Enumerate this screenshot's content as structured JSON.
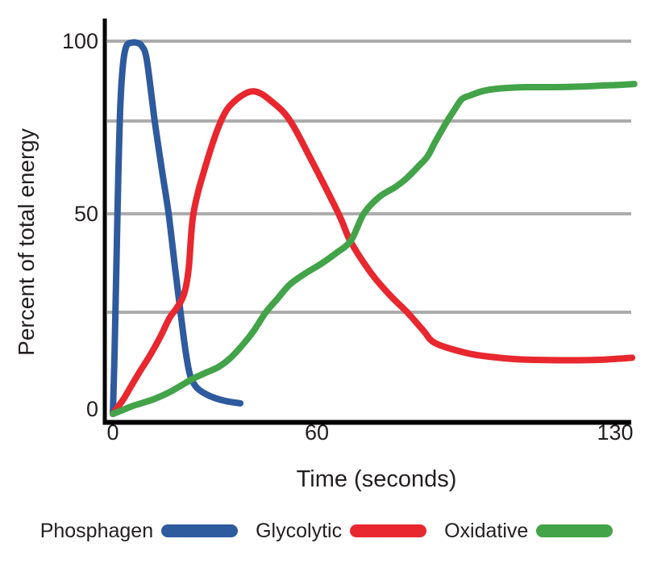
{
  "chart_data": {
    "type": "line",
    "xlabel": "Time (seconds)",
    "ylabel": "Percent of total energy",
    "xlim": [
      0,
      134
    ],
    "ylim": [
      0,
      100
    ],
    "grid": "horizontal",
    "gridlines_y": [
      100,
      75,
      50,
      25
    ],
    "legend_position": "bottom",
    "x_ticks": [
      {
        "label": "0",
        "value": 0
      },
      {
        "label": "60",
        "value": 60
      },
      {
        "label": "130",
        "value": 130
      }
    ],
    "y_ticks": [
      {
        "label": "100",
        "value": 100
      },
      {
        "label": "50",
        "value": 50
      },
      {
        "label": "0",
        "value": 0
      }
    ],
    "series": [
      {
        "name": "Phosphagen",
        "color": "#2E5A9E",
        "points": [
          [
            0,
            0
          ],
          [
            0.5,
            15
          ],
          [
            1,
            35
          ],
          [
            1.6,
            60
          ],
          [
            2.2,
            80
          ],
          [
            3,
            93
          ],
          [
            4,
            98.5
          ],
          [
            5.5,
            99.5
          ],
          [
            7,
            99.5
          ],
          [
            8.5,
            98.5
          ],
          [
            10,
            94
          ],
          [
            12.3,
            75
          ],
          [
            14.4,
            62
          ],
          [
            16.4,
            50
          ],
          [
            18.2,
            37
          ],
          [
            19.9,
            25
          ],
          [
            21.3,
            16
          ],
          [
            22.3,
            11
          ],
          [
            23.2,
            8.4
          ],
          [
            25,
            6.2
          ],
          [
            28.5,
            4.4
          ],
          [
            33,
            3.2
          ],
          [
            37.5,
            2.6
          ]
        ]
      },
      {
        "name": "Glycolytic",
        "color": "#E8272E",
        "points": [
          [
            0,
            0
          ],
          [
            3,
            3.5
          ],
          [
            5.5,
            7
          ],
          [
            8,
            10.5
          ],
          [
            11,
            14.5
          ],
          [
            14,
            19
          ],
          [
            16.6,
            23.5
          ],
          [
            18.7,
            26
          ],
          [
            20.9,
            29.5
          ],
          [
            22.3,
            36
          ],
          [
            23.7,
            50
          ],
          [
            27.3,
            63
          ],
          [
            31.8,
            75
          ],
          [
            35.6,
            81
          ],
          [
            41.5,
            84.3
          ],
          [
            47.4,
            80.5
          ],
          [
            52.2,
            75
          ],
          [
            58.1,
            65
          ],
          [
            65.1,
            50
          ],
          [
            67.9,
            43
          ],
          [
            72.7,
            35
          ],
          [
            77,
            29.5
          ],
          [
            81.2,
            25
          ],
          [
            85,
            20.5
          ],
          [
            87.8,
            17.4
          ],
          [
            95,
            15
          ],
          [
            101,
            14
          ],
          [
            108,
            13.4
          ],
          [
            118,
            13.2
          ],
          [
            126,
            13.3
          ],
          [
            134,
            13.8
          ]
        ]
      },
      {
        "name": "Oxidative",
        "color": "#42A348",
        "points": [
          [
            0,
            0
          ],
          [
            3,
            1
          ],
          [
            6,
            2
          ],
          [
            12,
            3.6
          ],
          [
            17,
            5.5
          ],
          [
            23,
            8.4
          ],
          [
            27,
            10
          ],
          [
            31,
            11.5
          ],
          [
            34.5,
            13.7
          ],
          [
            38,
            16.8
          ],
          [
            41.5,
            20.5
          ],
          [
            45,
            25
          ],
          [
            48.5,
            28.5
          ],
          [
            52,
            32
          ],
          [
            56.5,
            34.8
          ],
          [
            61,
            37.3
          ],
          [
            64.5,
            40
          ],
          [
            68,
            43.2
          ],
          [
            71,
            50
          ],
          [
            74.6,
            54.5
          ],
          [
            78.4,
            57.2
          ],
          [
            81,
            59.5
          ],
          [
            84,
            63
          ],
          [
            86,
            65.5
          ],
          [
            87.8,
            69.4
          ],
          [
            90.6,
            75
          ],
          [
            92.3,
            78.5
          ],
          [
            94,
            81.8
          ],
          [
            96,
            83
          ],
          [
            99,
            84.4
          ],
          [
            103,
            85.2
          ],
          [
            109,
            85.6
          ],
          [
            116,
            85.6
          ],
          [
            122,
            85.8
          ],
          [
            127,
            86.1
          ],
          [
            131,
            86.3
          ],
          [
            134.5,
            86.6
          ]
        ]
      }
    ]
  }
}
